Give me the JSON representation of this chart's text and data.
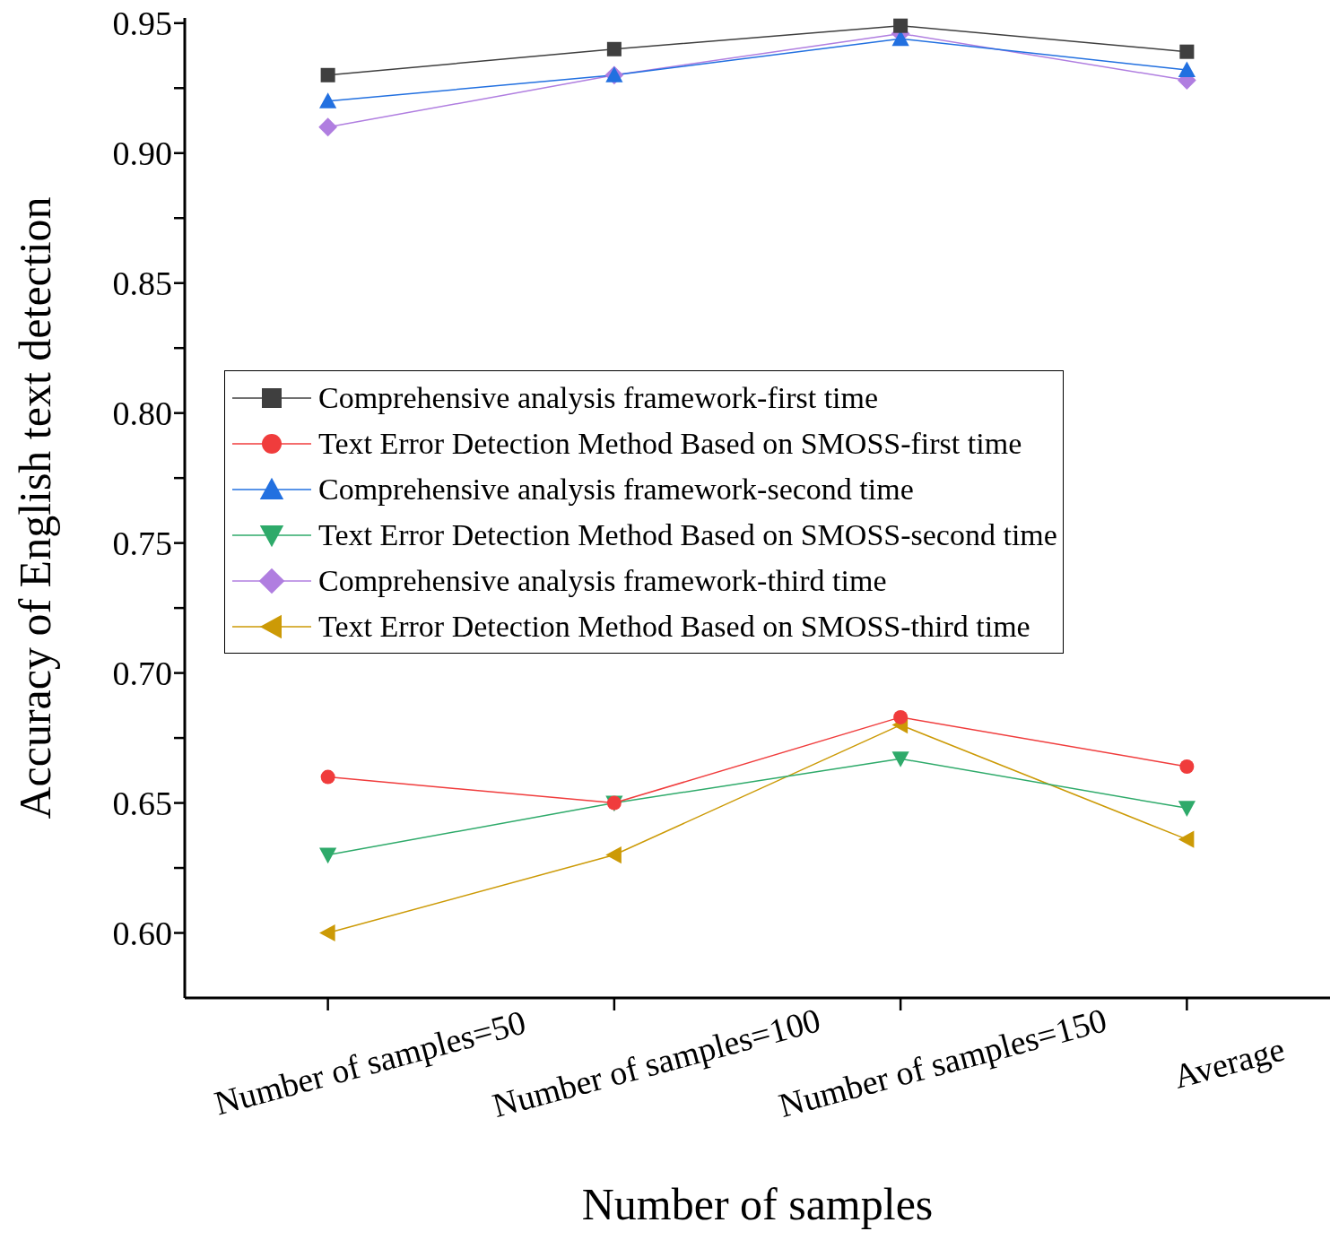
{
  "chart_data": {
    "type": "line",
    "xlabel": "Number of samples",
    "ylabel": "Accuracy of English text detection",
    "categories": [
      "Number of samples=50",
      "Number of samples=100",
      "Number of samples=150",
      "Average"
    ],
    "ylim": [
      0.575,
      0.952
    ],
    "yticks": [
      {
        "value": 0.6,
        "label": "0.60"
      },
      {
        "value": 0.625,
        "label": null
      },
      {
        "value": 0.65,
        "label": "0.65"
      },
      {
        "value": 0.675,
        "label": null
      },
      {
        "value": 0.7,
        "label": "0.70"
      },
      {
        "value": 0.725,
        "label": null
      },
      {
        "value": 0.75,
        "label": "0.75"
      },
      {
        "value": 0.775,
        "label": null
      },
      {
        "value": 0.8,
        "label": "0.80"
      },
      {
        "value": 0.825,
        "label": null
      },
      {
        "value": 0.85,
        "label": "0.85"
      },
      {
        "value": 0.875,
        "label": null
      },
      {
        "value": 0.9,
        "label": "0.90"
      },
      {
        "value": 0.925,
        "label": null
      },
      {
        "value": 0.95,
        "label": "0.95"
      }
    ],
    "legend": "left",
    "series": [
      {
        "name": "Comprehensive analysis framework-first time",
        "color": "#3f3f3f",
        "marker": "square",
        "values": [
          0.93,
          0.94,
          0.949,
          0.939
        ]
      },
      {
        "name": "Text Error Detection Method Based on SMOSS-first time",
        "color": "#f03c3c",
        "marker": "circle",
        "values": [
          0.66,
          0.65,
          0.683,
          0.664
        ]
      },
      {
        "name": "Comprehensive analysis framework-second time",
        "color": "#2270e0",
        "marker": "triangle",
        "values": [
          0.92,
          0.93,
          0.944,
          0.932
        ]
      },
      {
        "name": "Text Error Detection Method Based on SMOSS-second time",
        "color": "#2eaa6a",
        "marker": "triangle-down",
        "values": [
          0.63,
          0.65,
          0.667,
          0.648
        ]
      },
      {
        "name": "Comprehensive analysis framework-third time",
        "color": "#b07ee0",
        "marker": "diamond",
        "values": [
          0.91,
          0.93,
          0.946,
          0.928
        ]
      },
      {
        "name": "Text Error Detection Method Based on SMOSS-third time",
        "color": "#cc9a06",
        "marker": "triangle-left",
        "values": [
          0.6,
          0.63,
          0.68,
          0.636
        ]
      }
    ]
  }
}
